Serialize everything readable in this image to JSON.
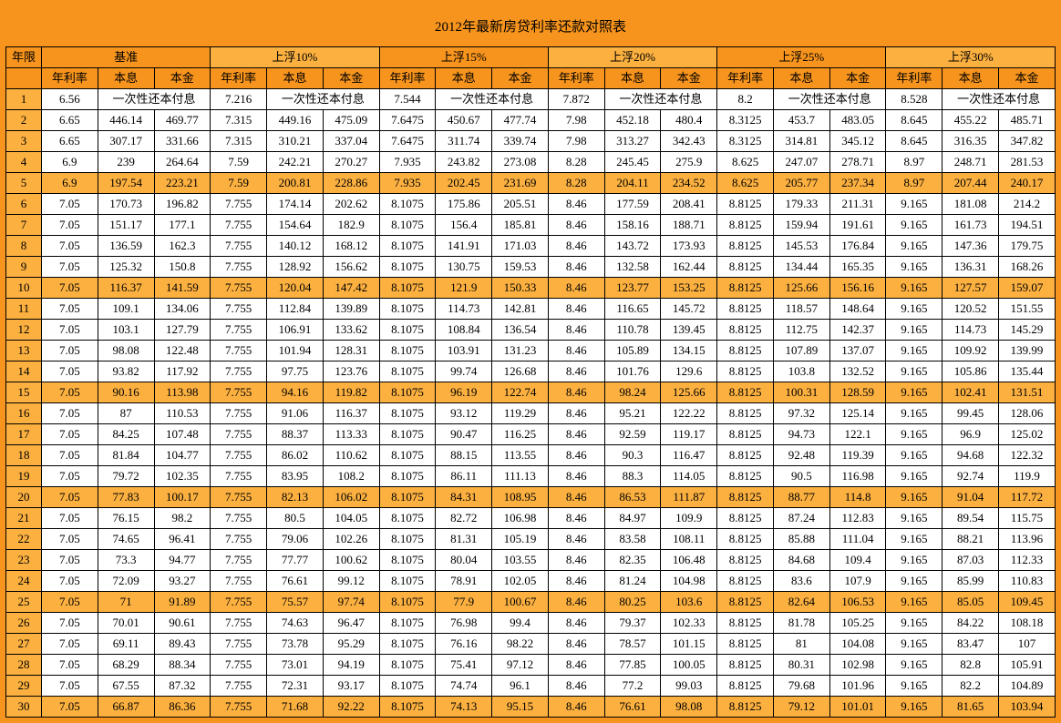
{
  "title": "2012年最新房贷利率还款对照表",
  "header_year": "年限",
  "groups": [
    "基准",
    "上浮10%",
    "上浮15%",
    "上浮20%",
    "上浮25%",
    "上浮30%"
  ],
  "sub_headers": [
    "年利率",
    "本息",
    "本金"
  ],
  "once_label": "一次性还本付息",
  "alt_rows": [
    5,
    10,
    15,
    20,
    25,
    30
  ],
  "colors": {
    "page_bg": "#f7941d",
    "cell_bg": "#ffffff",
    "alt_bg": "#fbb040",
    "border": "#000000",
    "text": "#000000"
  },
  "font_size_pt": 10,
  "rows": [
    {
      "n": 1,
      "g": [
        [
          "6.56",
          "__ONCE__",
          ""
        ],
        [
          "7.216",
          "__ONCE__",
          ""
        ],
        [
          "7.544",
          "__ONCE__",
          ""
        ],
        [
          "7.872",
          "__ONCE__",
          ""
        ],
        [
          "8.2",
          "__ONCE__",
          ""
        ],
        [
          "8.528",
          "__ONCE__",
          ""
        ]
      ]
    },
    {
      "n": 2,
      "g": [
        [
          "6.65",
          "446.14",
          "469.77"
        ],
        [
          "7.315",
          "449.16",
          "475.09"
        ],
        [
          "7.6475",
          "450.67",
          "477.74"
        ],
        [
          "7.98",
          "452.18",
          "480.4"
        ],
        [
          "8.3125",
          "453.7",
          "483.05"
        ],
        [
          "8.645",
          "455.22",
          "485.71"
        ]
      ]
    },
    {
      "n": 3,
      "g": [
        [
          "6.65",
          "307.17",
          "331.66"
        ],
        [
          "7.315",
          "310.21",
          "337.04"
        ],
        [
          "7.6475",
          "311.74",
          "339.74"
        ],
        [
          "7.98",
          "313.27",
          "342.43"
        ],
        [
          "8.3125",
          "314.81",
          "345.12"
        ],
        [
          "8.645",
          "316.35",
          "347.82"
        ]
      ]
    },
    {
      "n": 4,
      "g": [
        [
          "6.9",
          "239",
          "264.64"
        ],
        [
          "7.59",
          "242.21",
          "270.27"
        ],
        [
          "7.935",
          "243.82",
          "273.08"
        ],
        [
          "8.28",
          "245.45",
          "275.9"
        ],
        [
          "8.625",
          "247.07",
          "278.71"
        ],
        [
          "8.97",
          "248.71",
          "281.53"
        ]
      ]
    },
    {
      "n": 5,
      "g": [
        [
          "6.9",
          "197.54",
          "223.21"
        ],
        [
          "7.59",
          "200.81",
          "228.86"
        ],
        [
          "7.935",
          "202.45",
          "231.69"
        ],
        [
          "8.28",
          "204.11",
          "234.52"
        ],
        [
          "8.625",
          "205.77",
          "237.34"
        ],
        [
          "8.97",
          "207.44",
          "240.17"
        ]
      ]
    },
    {
      "n": 6,
      "g": [
        [
          "7.05",
          "170.73",
          "196.82"
        ],
        [
          "7.755",
          "174.14",
          "202.62"
        ],
        [
          "8.1075",
          "175.86",
          "205.51"
        ],
        [
          "8.46",
          "177.59",
          "208.41"
        ],
        [
          "8.8125",
          "179.33",
          "211.31"
        ],
        [
          "9.165",
          "181.08",
          "214.2"
        ]
      ]
    },
    {
      "n": 7,
      "g": [
        [
          "7.05",
          "151.17",
          "177.1"
        ],
        [
          "7.755",
          "154.64",
          "182.9"
        ],
        [
          "8.1075",
          "156.4",
          "185.81"
        ],
        [
          "8.46",
          "158.16",
          "188.71"
        ],
        [
          "8.8125",
          "159.94",
          "191.61"
        ],
        [
          "9.165",
          "161.73",
          "194.51"
        ]
      ]
    },
    {
      "n": 8,
      "g": [
        [
          "7.05",
          "136.59",
          "162.3"
        ],
        [
          "7.755",
          "140.12",
          "168.12"
        ],
        [
          "8.1075",
          "141.91",
          "171.03"
        ],
        [
          "8.46",
          "143.72",
          "173.93"
        ],
        [
          "8.8125",
          "145.53",
          "176.84"
        ],
        [
          "9.165",
          "147.36",
          "179.75"
        ]
      ]
    },
    {
      "n": 9,
      "g": [
        [
          "7.05",
          "125.32",
          "150.8"
        ],
        [
          "7.755",
          "128.92",
          "156.62"
        ],
        [
          "8.1075",
          "130.75",
          "159.53"
        ],
        [
          "8.46",
          "132.58",
          "162.44"
        ],
        [
          "8.8125",
          "134.44",
          "165.35"
        ],
        [
          "9.165",
          "136.31",
          "168.26"
        ]
      ]
    },
    {
      "n": 10,
      "g": [
        [
          "7.05",
          "116.37",
          "141.59"
        ],
        [
          "7.755",
          "120.04",
          "147.42"
        ],
        [
          "8.1075",
          "121.9",
          "150.33"
        ],
        [
          "8.46",
          "123.77",
          "153.25"
        ],
        [
          "8.8125",
          "125.66",
          "156.16"
        ],
        [
          "9.165",
          "127.57",
          "159.07"
        ]
      ]
    },
    {
      "n": 11,
      "g": [
        [
          "7.05",
          "109.1",
          "134.06"
        ],
        [
          "7.755",
          "112.84",
          "139.89"
        ],
        [
          "8.1075",
          "114.73",
          "142.81"
        ],
        [
          "8.46",
          "116.65",
          "145.72"
        ],
        [
          "8.8125",
          "118.57",
          "148.64"
        ],
        [
          "9.165",
          "120.52",
          "151.55"
        ]
      ]
    },
    {
      "n": 12,
      "g": [
        [
          "7.05",
          "103.1",
          "127.79"
        ],
        [
          "7.755",
          "106.91",
          "133.62"
        ],
        [
          "8.1075",
          "108.84",
          "136.54"
        ],
        [
          "8.46",
          "110.78",
          "139.45"
        ],
        [
          "8.8125",
          "112.75",
          "142.37"
        ],
        [
          "9.165",
          "114.73",
          "145.29"
        ]
      ]
    },
    {
      "n": 13,
      "g": [
        [
          "7.05",
          "98.08",
          "122.48"
        ],
        [
          "7.755",
          "101.94",
          "128.31"
        ],
        [
          "8.1075",
          "103.91",
          "131.23"
        ],
        [
          "8.46",
          "105.89",
          "134.15"
        ],
        [
          "8.8125",
          "107.89",
          "137.07"
        ],
        [
          "9.165",
          "109.92",
          "139.99"
        ]
      ]
    },
    {
      "n": 14,
      "g": [
        [
          "7.05",
          "93.82",
          "117.92"
        ],
        [
          "7.755",
          "97.75",
          "123.76"
        ],
        [
          "8.1075",
          "99.74",
          "126.68"
        ],
        [
          "8.46",
          "101.76",
          "129.6"
        ],
        [
          "8.8125",
          "103.8",
          "132.52"
        ],
        [
          "9.165",
          "105.86",
          "135.44"
        ]
      ]
    },
    {
      "n": 15,
      "g": [
        [
          "7.05",
          "90.16",
          "113.98"
        ],
        [
          "7.755",
          "94.16",
          "119.82"
        ],
        [
          "8.1075",
          "96.19",
          "122.74"
        ],
        [
          "8.46",
          "98.24",
          "125.66"
        ],
        [
          "8.8125",
          "100.31",
          "128.59"
        ],
        [
          "9.165",
          "102.41",
          "131.51"
        ]
      ]
    },
    {
      "n": 16,
      "g": [
        [
          "7.05",
          "87",
          "110.53"
        ],
        [
          "7.755",
          "91.06",
          "116.37"
        ],
        [
          "8.1075",
          "93.12",
          "119.29"
        ],
        [
          "8.46",
          "95.21",
          "122.22"
        ],
        [
          "8.8125",
          "97.32",
          "125.14"
        ],
        [
          "9.165",
          "99.45",
          "128.06"
        ]
      ]
    },
    {
      "n": 17,
      "g": [
        [
          "7.05",
          "84.25",
          "107.48"
        ],
        [
          "7.755",
          "88.37",
          "113.33"
        ],
        [
          "8.1075",
          "90.47",
          "116.25"
        ],
        [
          "8.46",
          "92.59",
          "119.17"
        ],
        [
          "8.8125",
          "94.73",
          "122.1"
        ],
        [
          "9.165",
          "96.9",
          "125.02"
        ]
      ]
    },
    {
      "n": 18,
      "g": [
        [
          "7.05",
          "81.84",
          "104.77"
        ],
        [
          "7.755",
          "86.02",
          "110.62"
        ],
        [
          "8.1075",
          "88.15",
          "113.55"
        ],
        [
          "8.46",
          "90.3",
          "116.47"
        ],
        [
          "8.8125",
          "92.48",
          "119.39"
        ],
        [
          "9.165",
          "94.68",
          "122.32"
        ]
      ]
    },
    {
      "n": 19,
      "g": [
        [
          "7.05",
          "79.72",
          "102.35"
        ],
        [
          "7.755",
          "83.95",
          "108.2"
        ],
        [
          "8.1075",
          "86.11",
          "111.13"
        ],
        [
          "8.46",
          "88.3",
          "114.05"
        ],
        [
          "8.8125",
          "90.5",
          "116.98"
        ],
        [
          "9.165",
          "92.74",
          "119.9"
        ]
      ]
    },
    {
      "n": 20,
      "g": [
        [
          "7.05",
          "77.83",
          "100.17"
        ],
        [
          "7.755",
          "82.13",
          "106.02"
        ],
        [
          "8.1075",
          "84.31",
          "108.95"
        ],
        [
          "8.46",
          "86.53",
          "111.87"
        ],
        [
          "8.8125",
          "88.77",
          "114.8"
        ],
        [
          "9.165",
          "91.04",
          "117.72"
        ]
      ]
    },
    {
      "n": 21,
      "g": [
        [
          "7.05",
          "76.15",
          "98.2"
        ],
        [
          "7.755",
          "80.5",
          "104.05"
        ],
        [
          "8.1075",
          "82.72",
          "106.98"
        ],
        [
          "8.46",
          "84.97",
          "109.9"
        ],
        [
          "8.8125",
          "87.24",
          "112.83"
        ],
        [
          "9.165",
          "89.54",
          "115.75"
        ]
      ]
    },
    {
      "n": 22,
      "g": [
        [
          "7.05",
          "74.65",
          "96.41"
        ],
        [
          "7.755",
          "79.06",
          "102.26"
        ],
        [
          "8.1075",
          "81.31",
          "105.19"
        ],
        [
          "8.46",
          "83.58",
          "108.11"
        ],
        [
          "8.8125",
          "85.88",
          "111.04"
        ],
        [
          "9.165",
          "88.21",
          "113.96"
        ]
      ]
    },
    {
      "n": 23,
      "g": [
        [
          "7.05",
          "73.3",
          "94.77"
        ],
        [
          "7.755",
          "77.77",
          "100.62"
        ],
        [
          "8.1075",
          "80.04",
          "103.55"
        ],
        [
          "8.46",
          "82.35",
          "106.48"
        ],
        [
          "8.8125",
          "84.68",
          "109.4"
        ],
        [
          "9.165",
          "87.03",
          "112.33"
        ]
      ]
    },
    {
      "n": 24,
      "g": [
        [
          "7.05",
          "72.09",
          "93.27"
        ],
        [
          "7.755",
          "76.61",
          "99.12"
        ],
        [
          "8.1075",
          "78.91",
          "102.05"
        ],
        [
          "8.46",
          "81.24",
          "104.98"
        ],
        [
          "8.8125",
          "83.6",
          "107.9"
        ],
        [
          "9.165",
          "85.99",
          "110.83"
        ]
      ]
    },
    {
      "n": 25,
      "g": [
        [
          "7.05",
          "71",
          "91.89"
        ],
        [
          "7.755",
          "75.57",
          "97.74"
        ],
        [
          "8.1075",
          "77.9",
          "100.67"
        ],
        [
          "8.46",
          "80.25",
          "103.6"
        ],
        [
          "8.8125",
          "82.64",
          "106.53"
        ],
        [
          "9.165",
          "85.05",
          "109.45"
        ]
      ]
    },
    {
      "n": 26,
      "g": [
        [
          "7.05",
          "70.01",
          "90.61"
        ],
        [
          "7.755",
          "74.63",
          "96.47"
        ],
        [
          "8.1075",
          "76.98",
          "99.4"
        ],
        [
          "8.46",
          "79.37",
          "102.33"
        ],
        [
          "8.8125",
          "81.78",
          "105.25"
        ],
        [
          "9.165",
          "84.22",
          "108.18"
        ]
      ]
    },
    {
      "n": 27,
      "g": [
        [
          "7.05",
          "69.11",
          "89.43"
        ],
        [
          "7.755",
          "73.78",
          "95.29"
        ],
        [
          "8.1075",
          "76.16",
          "98.22"
        ],
        [
          "8.46",
          "78.57",
          "101.15"
        ],
        [
          "8.8125",
          "81",
          "104.08"
        ],
        [
          "9.165",
          "83.47",
          "107"
        ]
      ]
    },
    {
      "n": 28,
      "g": [
        [
          "7.05",
          "68.29",
          "88.34"
        ],
        [
          "7.755",
          "73.01",
          "94.19"
        ],
        [
          "8.1075",
          "75.41",
          "97.12"
        ],
        [
          "8.46",
          "77.85",
          "100.05"
        ],
        [
          "8.8125",
          "80.31",
          "102.98"
        ],
        [
          "9.165",
          "82.8",
          "105.91"
        ]
      ]
    },
    {
      "n": 29,
      "g": [
        [
          "7.05",
          "67.55",
          "87.32"
        ],
        [
          "7.755",
          "72.31",
          "93.17"
        ],
        [
          "8.1075",
          "74.74",
          "96.1"
        ],
        [
          "8.46",
          "77.2",
          "99.03"
        ],
        [
          "8.8125",
          "79.68",
          "101.96"
        ],
        [
          "9.165",
          "82.2",
          "104.89"
        ]
      ]
    },
    {
      "n": 30,
      "g": [
        [
          "7.05",
          "66.87",
          "86.36"
        ],
        [
          "7.755",
          "71.68",
          "92.22"
        ],
        [
          "8.1075",
          "74.13",
          "95.15"
        ],
        [
          "8.46",
          "76.61",
          "98.08"
        ],
        [
          "8.8125",
          "79.12",
          "101.01"
        ],
        [
          "9.165",
          "81.65",
          "103.94"
        ]
      ]
    }
  ]
}
